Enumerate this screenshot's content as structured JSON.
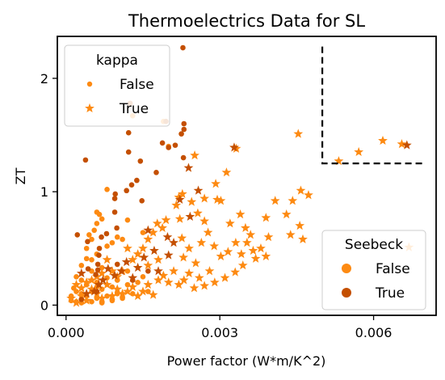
{
  "chart_data": {
    "type": "scatter",
    "title": "Thermoelectrics Data for SL",
    "xlabel": "Power factor (W*m/K^2)",
    "ylabel": "ZT",
    "xlim": [
      -0.00017,
      0.00722
    ],
    "ylim": [
      -0.09,
      2.37
    ],
    "xticks": [
      0.0,
      0.003,
      0.006
    ],
    "xtick_labels": [
      "0.000",
      "0.003",
      "0.006"
    ],
    "yticks": [
      0,
      1,
      2
    ],
    "ytick_labels": [
      "0",
      "1",
      "2"
    ],
    "grid": false,
    "colors": {
      "seebeck_false": "#fd8a12",
      "seebeck_true": "#c44f00",
      "dashed_box": "#000000"
    },
    "marker_encoding": {
      "kappa_false": "circle",
      "kappa_true": "star"
    },
    "legends": [
      {
        "title": "kappa",
        "placement": "top-left",
        "entries": [
          {
            "label": "False",
            "marker": "circle",
            "color": "#fd8a12"
          },
          {
            "label": "True",
            "marker": "star",
            "color": "#fd8a12"
          }
        ]
      },
      {
        "title": "Seebeck",
        "placement": "lower-right",
        "entries": [
          {
            "label": "False",
            "marker": "circle",
            "color": "#fd8a12"
          },
          {
            "label": "True",
            "marker": "circle",
            "color": "#c44f00"
          }
        ]
      }
    ],
    "annotation_box": {
      "x_min": 0.005,
      "x_max": 0.007,
      "y_min": 1.25,
      "y_max": 2.28,
      "style": "dashed"
    },
    "series": [
      {
        "name": "kappa=False, Seebeck=False",
        "marker": "circle",
        "color": "#fd8a12",
        "points": [
          [
            0.0008,
            1.02
          ],
          [
            0.0006,
            0.82
          ],
          [
            0.00065,
            0.8
          ],
          [
            0.0007,
            0.76
          ],
          [
            0.0006,
            0.72
          ],
          [
            0.00055,
            0.66
          ],
          [
            0.0005,
            0.58
          ],
          [
            0.00045,
            0.62
          ],
          [
            0.0004,
            0.5
          ],
          [
            0.0004,
            0.41
          ],
          [
            0.0005,
            0.4
          ],
          [
            0.0006,
            0.45
          ],
          [
            0.0007,
            0.33
          ],
          [
            0.0008,
            0.52
          ],
          [
            0.0009,
            0.55
          ],
          [
            0.001,
            0.6
          ],
          [
            0.0011,
            0.58
          ],
          [
            0.0005,
            0.3
          ],
          [
            0.0003,
            0.35
          ],
          [
            0.0003,
            0.22
          ],
          [
            0.0002,
            0.25
          ],
          [
            0.0002,
            0.12
          ],
          [
            0.0001,
            0.08
          ],
          [
            0.0001,
            0.04
          ],
          [
            0.00015,
            0.15
          ],
          [
            0.0003,
            0.1
          ],
          [
            0.0004,
            0.18
          ],
          [
            0.0004,
            0.08
          ],
          [
            0.0005,
            0.12
          ],
          [
            0.0006,
            0.2
          ],
          [
            0.0006,
            0.06
          ],
          [
            0.0007,
            0.14
          ],
          [
            0.0008,
            0.24
          ],
          [
            0.0008,
            0.08
          ],
          [
            0.0009,
            0.16
          ],
          [
            0.001,
            0.22
          ],
          [
            0.001,
            0.1
          ],
          [
            0.0012,
            0.18
          ],
          [
            0.0012,
            0.3
          ],
          [
            0.0014,
            0.2
          ],
          [
            0.0015,
            0.25
          ],
          [
            0.0016,
            0.12
          ],
          [
            0.0013,
            0.1
          ],
          [
            0.0011,
            0.06
          ],
          [
            0.0009,
            0.04
          ],
          [
            0.0007,
            0.02
          ],
          [
            0.0005,
            0.03
          ],
          [
            0.0003,
            0.02
          ],
          [
            0.0002,
            0.03
          ],
          [
            0.0012,
            0.75
          ],
          [
            0.0015,
            0.64
          ],
          [
            0.002,
            1.4
          ],
          [
            0.0019,
            1.62
          ],
          [
            0.0013,
            1.67
          ],
          [
            0.0006,
            0.16
          ]
        ]
      },
      {
        "name": "kappa=False, Seebeck=True",
        "marker": "circle",
        "color": "#c44f00",
        "points": [
          [
            0.00228,
            2.27
          ],
          [
            0.00125,
            1.78
          ],
          [
            0.00122,
            1.52
          ],
          [
            0.00122,
            1.35
          ],
          [
            0.00138,
            1.1
          ],
          [
            0.00128,
            1.06
          ],
          [
            0.00118,
            1.01
          ],
          [
            0.00148,
            0.92
          ],
          [
            0.00176,
            1.17
          ],
          [
            0.002,
            1.39
          ],
          [
            0.00213,
            1.41
          ],
          [
            0.00225,
            1.51
          ],
          [
            0.0023,
            1.6
          ],
          [
            0.0023,
            1.55
          ],
          [
            0.00229,
            1.3
          ],
          [
            0.00188,
            1.43
          ],
          [
            0.00195,
            1.62
          ],
          [
            0.00145,
            1.27
          ],
          [
            0.00096,
            0.98
          ],
          [
            0.00095,
            0.94
          ],
          [
            0.00095,
            0.82
          ],
          [
            0.00099,
            0.68
          ],
          [
            0.00079,
            0.63
          ],
          [
            0.00069,
            0.6
          ],
          [
            0.00065,
            0.5
          ],
          [
            0.00064,
            0.44
          ],
          [
            0.00062,
            0.36
          ],
          [
            0.00062,
            0.31
          ],
          [
            0.00058,
            0.27
          ],
          [
            0.00043,
            0.32
          ],
          [
            0.00038,
            1.28
          ],
          [
            0.00042,
            0.56
          ],
          [
            0.00022,
            0.62
          ],
          [
            0.0006,
            0.12
          ],
          [
            0.0003,
            0.05
          ],
          [
            0.0013,
            0.22
          ],
          [
            0.0016,
            0.3
          ],
          [
            0.001,
            0.36
          ]
        ]
      },
      {
        "name": "kappa=True, Seebeck=False",
        "marker": "star",
        "color": "#fd8a12",
        "points": [
          [
            0.00453,
            1.51
          ],
          [
            0.00532,
            1.27
          ],
          [
            0.00571,
            1.35
          ],
          [
            0.00618,
            1.45
          ],
          [
            0.00655,
            1.42
          ],
          [
            0.00251,
            1.32
          ],
          [
            0.00332,
            1.38
          ],
          [
            0.00313,
            1.17
          ],
          [
            0.00292,
            1.07
          ],
          [
            0.00302,
            0.92
          ],
          [
            0.0027,
            0.94
          ],
          [
            0.00295,
            0.93
          ],
          [
            0.00257,
            0.81
          ],
          [
            0.0022,
            0.95
          ],
          [
            0.00215,
            0.88
          ],
          [
            0.00195,
            0.75
          ],
          [
            0.00188,
            0.68
          ],
          [
            0.00178,
            0.72
          ],
          [
            0.0017,
            0.64
          ],
          [
            0.0016,
            0.58
          ],
          [
            0.00227,
            0.98
          ],
          [
            0.00245,
            0.91
          ],
          [
            0.00222,
            0.76
          ],
          [
            0.00226,
            0.59
          ],
          [
            0.00229,
            0.42
          ],
          [
            0.0024,
            0.5
          ],
          [
            0.00253,
            0.37
          ],
          [
            0.00264,
            0.55
          ],
          [
            0.00277,
            0.64
          ],
          [
            0.00289,
            0.52
          ],
          [
            0.00302,
            0.43
          ],
          [
            0.00316,
            0.47
          ],
          [
            0.00331,
            0.55
          ],
          [
            0.00342,
            0.45
          ],
          [
            0.00353,
            0.55
          ],
          [
            0.00365,
            0.48
          ],
          [
            0.0038,
            0.5
          ],
          [
            0.00395,
            0.6
          ],
          [
            0.00408,
            0.92
          ],
          [
            0.00442,
            0.92
          ],
          [
            0.00458,
            1.01
          ],
          [
            0.00473,
            0.97
          ],
          [
            0.00438,
            0.62
          ],
          [
            0.00462,
            0.58
          ],
          [
            0.00456,
            0.7
          ],
          [
            0.0039,
            0.43
          ],
          [
            0.0037,
            0.41
          ],
          [
            0.00345,
            0.35
          ],
          [
            0.0033,
            0.29
          ],
          [
            0.0031,
            0.24
          ],
          [
            0.0029,
            0.2
          ],
          [
            0.0027,
            0.17
          ],
          [
            0.0025,
            0.15
          ],
          [
            0.0023,
            0.22
          ],
          [
            0.0021,
            0.3
          ],
          [
            0.0019,
            0.26
          ],
          [
            0.0018,
            0.4
          ],
          [
            0.0016,
            0.35
          ],
          [
            0.0015,
            0.5
          ],
          [
            0.0014,
            0.45
          ],
          [
            0.0013,
            0.4
          ],
          [
            0.0012,
            0.5
          ],
          [
            0.0011,
            0.3
          ],
          [
            0.001,
            0.25
          ],
          [
            0.0009,
            0.3
          ],
          [
            0.0008,
            0.4
          ],
          [
            0.0007,
            0.28
          ],
          [
            0.0006,
            0.25
          ],
          [
            0.0005,
            0.22
          ],
          [
            0.0004,
            0.2
          ],
          [
            0.0003,
            0.15
          ],
          [
            0.0002,
            0.18
          ],
          [
            0.0001,
            0.06
          ],
          [
            0.0002,
            0.02
          ],
          [
            0.0004,
            0.04
          ],
          [
            0.0006,
            0.1
          ],
          [
            0.0008,
            0.18
          ],
          [
            0.001,
            0.14
          ],
          [
            0.0012,
            0.12
          ],
          [
            0.0014,
            0.08
          ],
          [
            0.0016,
            0.18
          ],
          [
            0.0018,
            0.22
          ],
          [
            0.002,
            0.2
          ],
          [
            0.0022,
            0.18
          ],
          [
            0.0024,
            0.28
          ],
          [
            0.0026,
            0.24
          ],
          [
            0.0028,
            0.3
          ],
          [
            0.0011,
            0.1
          ],
          [
            0.0013,
            0.16
          ],
          [
            0.0015,
            0.12
          ],
          [
            0.0017,
            0.09
          ],
          [
            0.0007,
            0.06
          ],
          [
            0.0009,
            0.08
          ],
          [
            0.0005,
            0.14
          ],
          [
            0.0003,
            0.08
          ],
          [
            0.00669,
            0.51
          ],
          [
            0.0027,
            0.74
          ],
          [
            0.0032,
            0.72
          ],
          [
            0.0035,
            0.68
          ],
          [
            0.0039,
            0.77
          ],
          [
            0.0036,
            0.62
          ],
          [
            0.0043,
            0.8
          ],
          [
            0.0034,
            0.8
          ]
        ]
      },
      {
        "name": "kappa=True, Seebeck=True",
        "marker": "star",
        "color": "#c44f00",
        "points": [
          [
            0.00665,
            1.41
          ],
          [
            0.00328,
            1.39
          ],
          [
            0.00239,
            1.21
          ],
          [
            0.00222,
            0.93
          ],
          [
            0.00242,
            0.78
          ],
          [
            0.00198,
            0.6
          ],
          [
            0.00172,
            0.48
          ],
          [
            0.00152,
            0.42
          ],
          [
            0.00118,
            0.38
          ],
          [
            0.00108,
            0.3
          ],
          [
            0.00095,
            0.26
          ],
          [
            0.00082,
            0.32
          ],
          [
            0.00072,
            0.22
          ],
          [
            0.00064,
            0.18
          ],
          [
            0.00055,
            0.12
          ],
          [
            0.0004,
            0.1
          ],
          [
            0.0003,
            0.28
          ],
          [
            0.0013,
            0.24
          ],
          [
            0.0014,
            0.33
          ],
          [
            0.0018,
            0.3
          ],
          [
            0.002,
            0.44
          ],
          [
            0.00258,
            1.01
          ],
          [
            0.0016,
            0.66
          ],
          [
            0.0021,
            0.55
          ]
        ]
      }
    ]
  }
}
